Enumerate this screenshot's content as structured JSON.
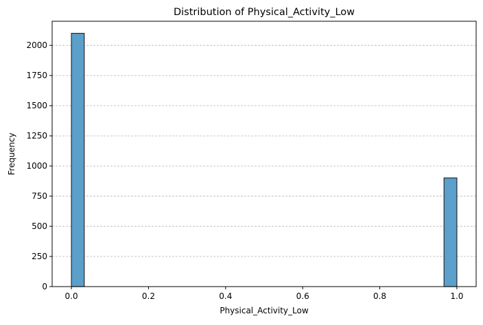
{
  "chart_data": {
    "type": "bar",
    "title": "Distribution of Physical_Activity_Low",
    "xlabel": "Physical_Activity_Low",
    "ylabel": "Frequency",
    "xlim": [
      -0.05,
      1.05
    ],
    "ylim": [
      0,
      2200
    ],
    "x_ticks": [
      0.0,
      0.2,
      0.4,
      0.6,
      0.8,
      1.0
    ],
    "x_tick_labels": [
      "0.0",
      "0.2",
      "0.4",
      "0.6",
      "0.8",
      "1.0"
    ],
    "y_ticks": [
      0,
      250,
      500,
      750,
      1000,
      1250,
      1500,
      1750,
      2000
    ],
    "y_tick_labels": [
      "0",
      "250",
      "500",
      "750",
      "1000",
      "1250",
      "1500",
      "1750",
      "2000"
    ],
    "bins": [
      {
        "start": 0.0,
        "end": 0.0333,
        "count": 2100
      },
      {
        "start": 0.9667,
        "end": 1.0,
        "count": 901
      }
    ],
    "grid": {
      "y": true,
      "x": false,
      "style": "dashed"
    },
    "colors": {
      "bar_fill": "#5b9fcb",
      "bar_edge": "#2b2b2b",
      "grid": "#b5b5b5",
      "axis": "#000000"
    }
  }
}
